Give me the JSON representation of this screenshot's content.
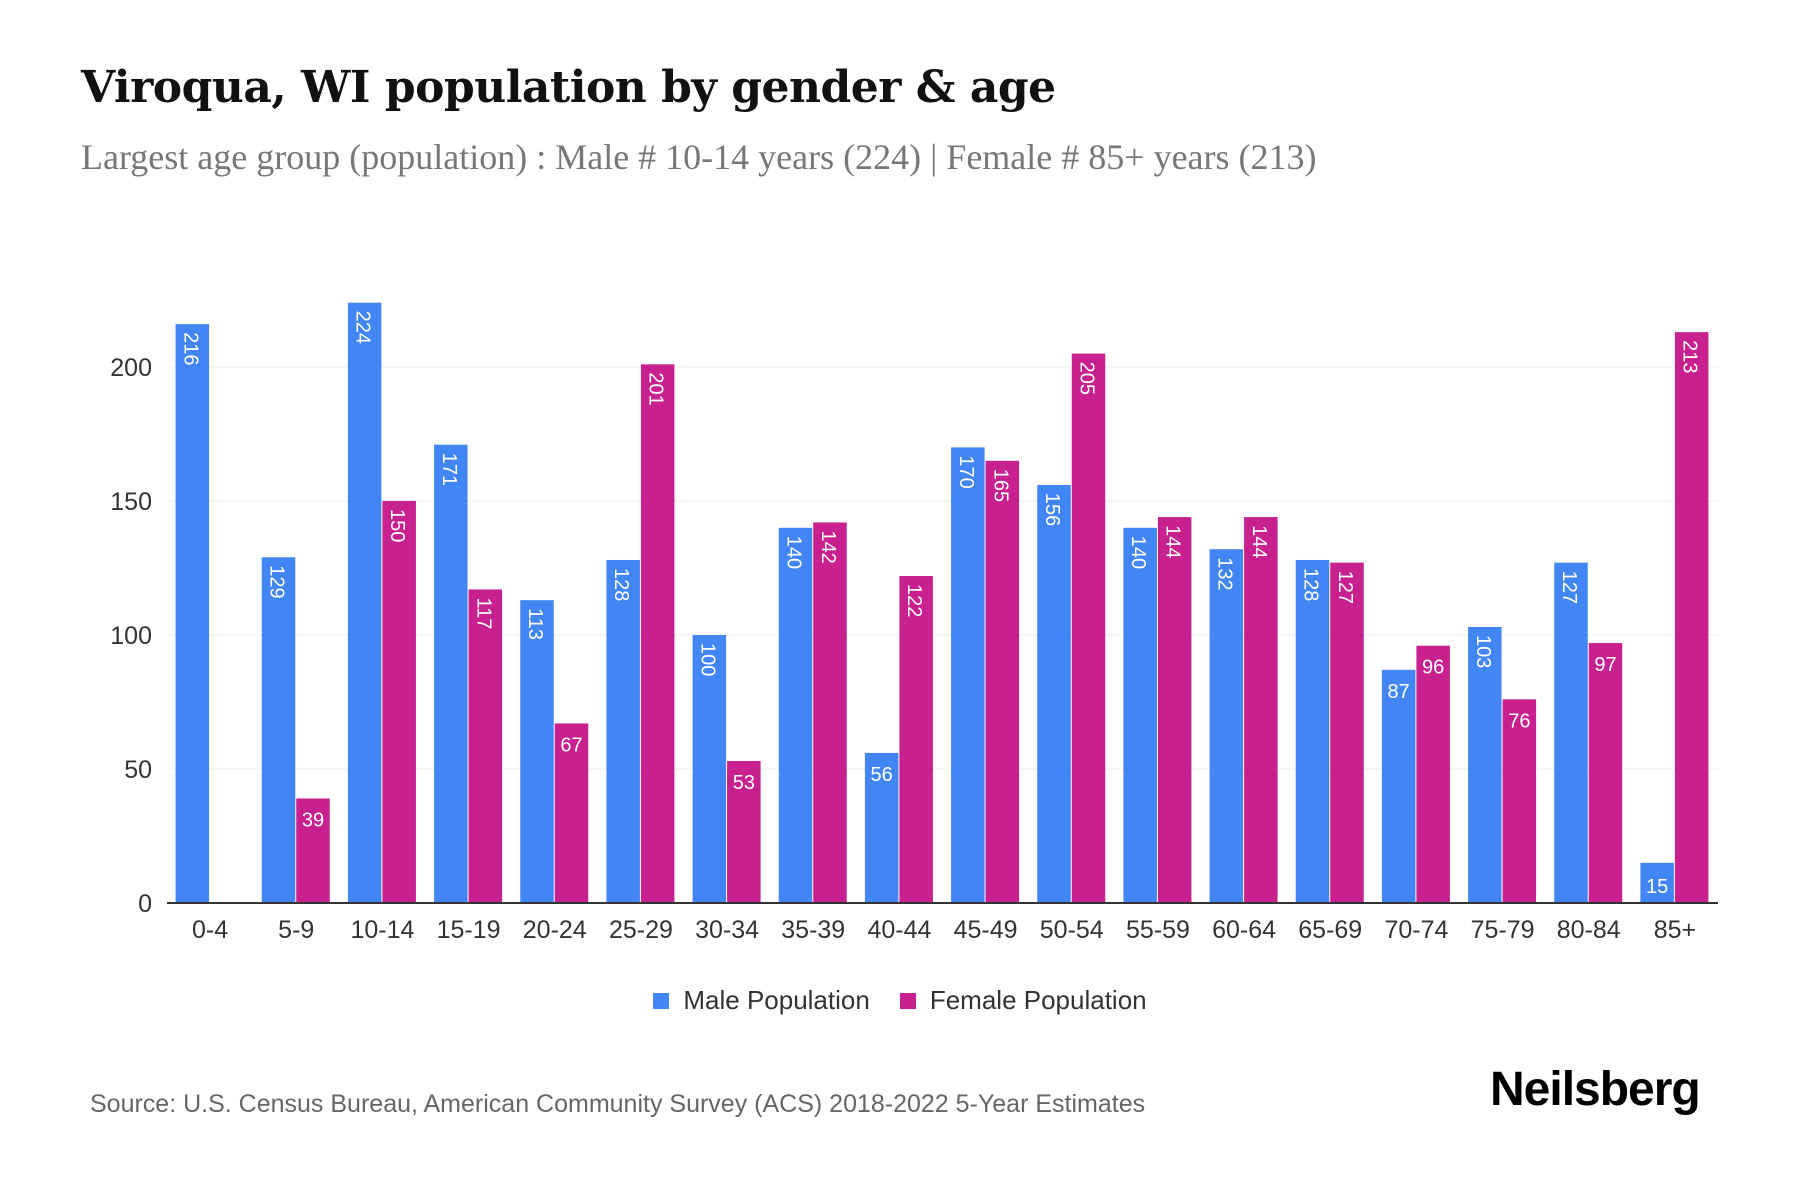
{
  "title": "Viroqua, WI population by gender & age",
  "subtitle": "Largest age group (population) : Male # 10-14 years (224) | Female # 85+ years (213)",
  "source": "Source: U.S. Census Bureau, American Community Survey (ACS) 2018-2022 5-Year Estimates",
  "brand": "Neilsberg",
  "colors": {
    "male": "#4285F4",
    "female": "#C8208E"
  },
  "chart_data": {
    "type": "bar",
    "title": "Viroqua, WI population by gender & age",
    "xlabel": "",
    "ylabel": "",
    "ylim": [
      0,
      230
    ],
    "yticks": [
      0,
      50,
      100,
      150,
      200
    ],
    "grid": true,
    "legend_position": "bottom",
    "categories": [
      "0-4",
      "5-9",
      "10-14",
      "15-19",
      "20-24",
      "25-29",
      "30-34",
      "35-39",
      "40-44",
      "45-49",
      "50-54",
      "55-59",
      "60-64",
      "65-69",
      "70-74",
      "75-79",
      "80-84",
      "85+"
    ],
    "series": [
      {
        "name": "Male Population",
        "values": [
          216,
          129,
          224,
          171,
          113,
          128,
          100,
          140,
          56,
          170,
          156,
          140,
          132,
          128,
          87,
          103,
          127,
          15
        ]
      },
      {
        "name": "Female Population",
        "values": [
          0,
          39,
          150,
          117,
          67,
          201,
          53,
          142,
          122,
          165,
          205,
          144,
          144,
          127,
          96,
          76,
          97,
          213
        ]
      }
    ]
  }
}
